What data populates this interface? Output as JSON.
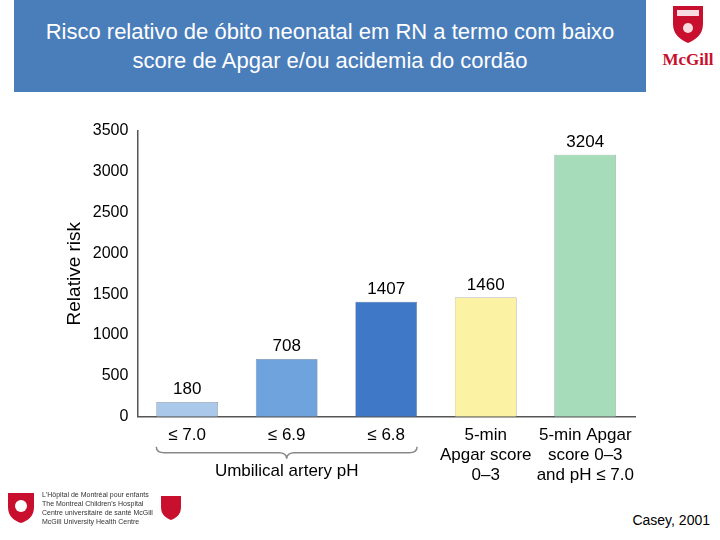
{
  "chart_data": {
    "type": "bar",
    "title": "Risco relativo de óbito neonatal em RN a termo com baixo score de Apgar e/ou acidemia do cordão",
    "categories": [
      "≤ 7.0",
      "≤ 6.9",
      "≤ 6.8",
      "5-min\nApgar score\n0–3",
      "5-min Apgar\nscore 0–3\nand pH ≤ 7.0"
    ],
    "values": [
      180,
      708,
      1407,
      1460,
      3204
    ],
    "colors": [
      "#a9c8ea",
      "#6fa3dd",
      "#3f78c6",
      "#fbf3a3",
      "#a6dcb9"
    ],
    "ylabel": "Relative risk",
    "ylim": [
      0,
      3500
    ],
    "yticks": [
      0,
      500,
      1000,
      1500,
      2000,
      2500,
      3000,
      3500
    ],
    "grid": false,
    "data_labels": true,
    "annotations": [
      {
        "text": "Umbilical artery pH",
        "from": "≤ 7.0",
        "to": "≤ 6.8"
      }
    ]
  },
  "logo": "McGill",
  "footer_logo": [
    "L'Hôpital de Montréal pour enfants",
    "The Montreal Children's Hospital",
    "Centre universitaire de santé McGill",
    "McGill University Health Centre"
  ],
  "source": "Casey, 2001"
}
